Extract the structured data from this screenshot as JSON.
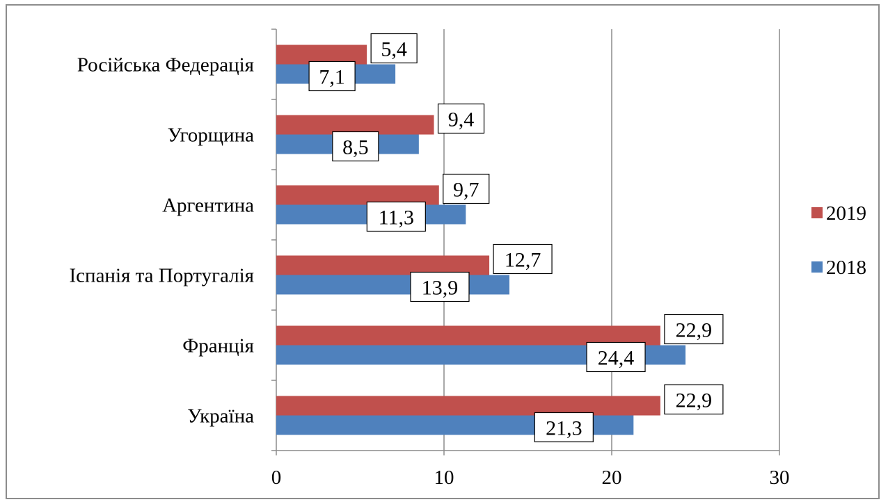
{
  "chart_data": {
    "type": "bar",
    "orientation": "horizontal",
    "categories": [
      "Російська Федерація",
      "Угорщина",
      "Аргентина",
      "Іспанія та Португалія",
      "Франція",
      "Україна"
    ],
    "series": [
      {
        "name": "2019",
        "color": "#C0504D",
        "values": [
          5.4,
          9.4,
          9.7,
          12.7,
          22.9,
          22.9
        ],
        "labels": [
          "5,4",
          "9,4",
          "9,7",
          "12,7",
          "22,9",
          "22,9"
        ]
      },
      {
        "name": "2018",
        "color": "#4F81BD",
        "values": [
          7.1,
          8.5,
          11.3,
          13.9,
          24.4,
          21.3
        ],
        "labels": [
          "7,1",
          "8,5",
          "11,3",
          "13,9",
          "24,4",
          "21,3"
        ]
      }
    ],
    "x_ticks": [
      "0",
      "10",
      "20",
      "30"
    ],
    "xlim": [
      0,
      30
    ],
    "grid": "vertical",
    "legend_position": "right"
  }
}
